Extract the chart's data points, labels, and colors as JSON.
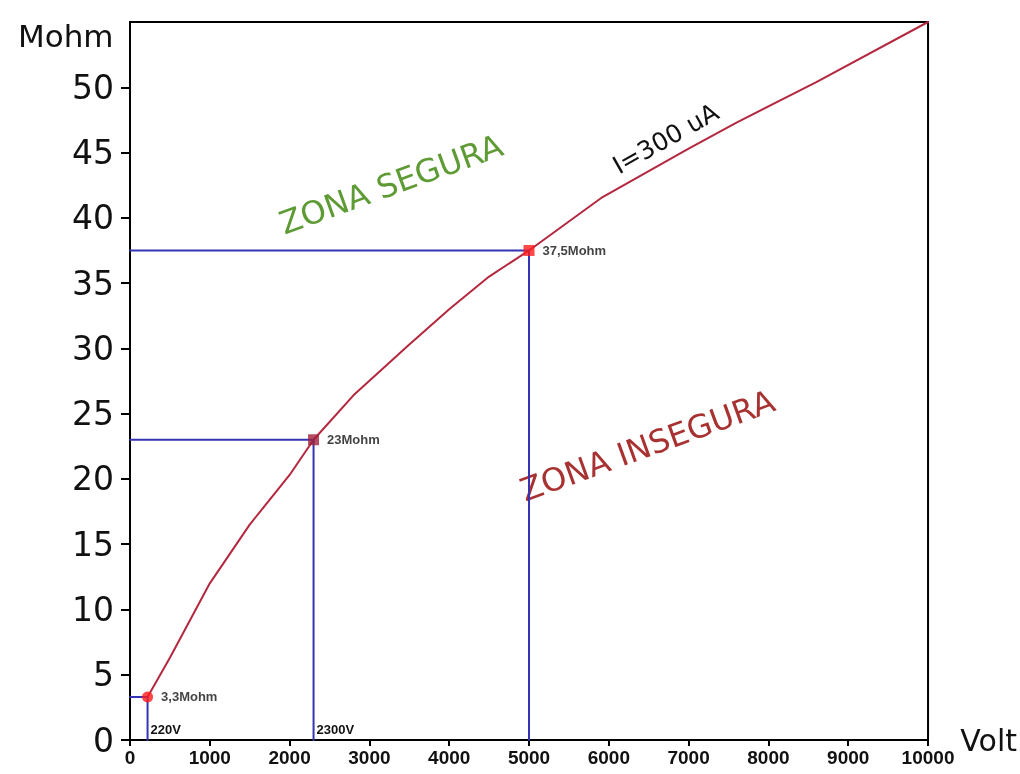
{
  "chart_data": {
    "type": "line",
    "xlabel": "Volt",
    "ylabel": "Mohm",
    "xlim": [
      0,
      10000
    ],
    "xticks": [
      0,
      1000,
      2000,
      3000,
      4000,
      5000,
      6000,
      7000,
      8000,
      9000,
      10000
    ],
    "ylim": [
      0,
      55
    ],
    "yticks": [
      0,
      5,
      10,
      15,
      20,
      25,
      30,
      35,
      40,
      45,
      50
    ],
    "marker": "none",
    "line_style": "solid",
    "series": [
      {
        "name": "I=300 uA",
        "color": "#b3283f",
        "x": [
          220,
          500,
          1000,
          1500,
          2000,
          2300,
          2800,
          3500,
          4000,
          4500,
          5000,
          5900,
          7000,
          7600,
          8600,
          10000
        ],
        "values": [
          3.3,
          6.3,
          12,
          16.5,
          20.3,
          23,
          26.4,
          30.3,
          33,
          35.5,
          37.5,
          41.5,
          45.3,
          47.3,
          50.4,
          55
        ]
      },
      {
        "color": "#3434b4",
        "x": [
          0,
          5000,
          5000
        ],
        "values": [
          37.5,
          37.5,
          0
        ]
      },
      {
        "color": "#3434b4",
        "x": [
          0,
          2300,
          2300
        ],
        "values": [
          23,
          23,
          0
        ]
      },
      {
        "color": "#3434b4",
        "x": [
          0,
          220,
          220
        ],
        "values": [
          3.3,
          3.3,
          0
        ]
      },
      {
        "type": "scatter",
        "marker": "circle",
        "color": "#ff1a1a",
        "x": [
          220
        ],
        "values": [
          3.3
        ],
        "value_labels": [
          "3,3Mohm"
        ]
      },
      {
        "type": "scatter",
        "marker": "square",
        "colors": [
          "#a0203a",
          "#ff1a1a"
        ],
        "x": [
          2300,
          5000
        ],
        "values": [
          23,
          37.5
        ],
        "value_labels": [
          "23Mohm",
          "37,5Mohm"
        ]
      }
    ],
    "annotations": [
      "ZONA SEGURA",
      "ZONA INSEGURA",
      {
        "text": "220V",
        "x": 220,
        "y": 0
      },
      {
        "text": "2300V",
        "x": 2300,
        "y": 0
      }
    ]
  }
}
